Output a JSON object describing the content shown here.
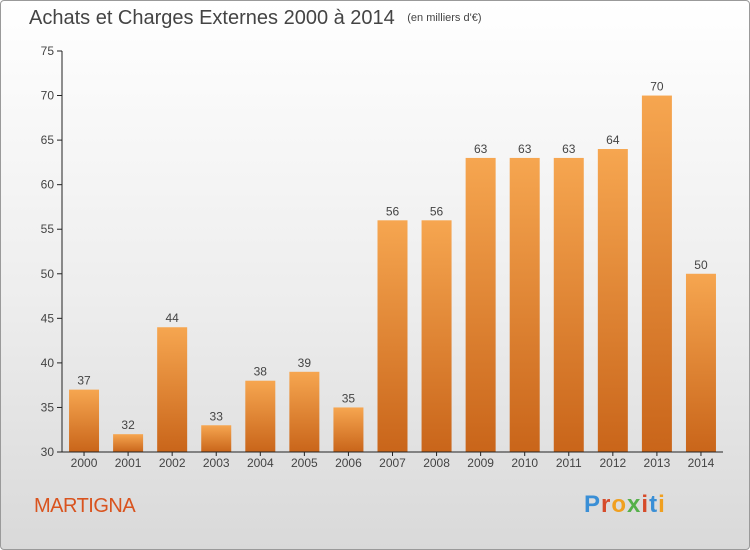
{
  "title": "Achats et Charges Externes 2000 à 2014",
  "unit": "(en milliers d'€)",
  "commune": "MARTIGNA",
  "logo_text": "Proxiti",
  "colors": {
    "bar_top": "#f6a650",
    "bar_bottom": "#c9651a",
    "axis": "#222222",
    "text": "#444444",
    "commune": "#d9531e"
  },
  "chart_data": {
    "type": "bar",
    "title": "Achats et Charges Externes 2000 à 2014",
    "subtitle": "(en milliers d'€)",
    "categories": [
      "2000",
      "2001",
      "2002",
      "2003",
      "2004",
      "2005",
      "2006",
      "2007",
      "2008",
      "2009",
      "2010",
      "2011",
      "2012",
      "2013",
      "2014"
    ],
    "values": [
      37,
      32,
      44,
      33,
      38,
      39,
      35,
      56,
      56,
      63,
      63,
      63,
      64,
      70,
      50
    ],
    "ylim": [
      30,
      75
    ],
    "yticks": [
      30,
      35,
      40,
      45,
      50,
      55,
      60,
      65,
      70,
      75
    ],
    "grid": false,
    "data_labels": true
  }
}
